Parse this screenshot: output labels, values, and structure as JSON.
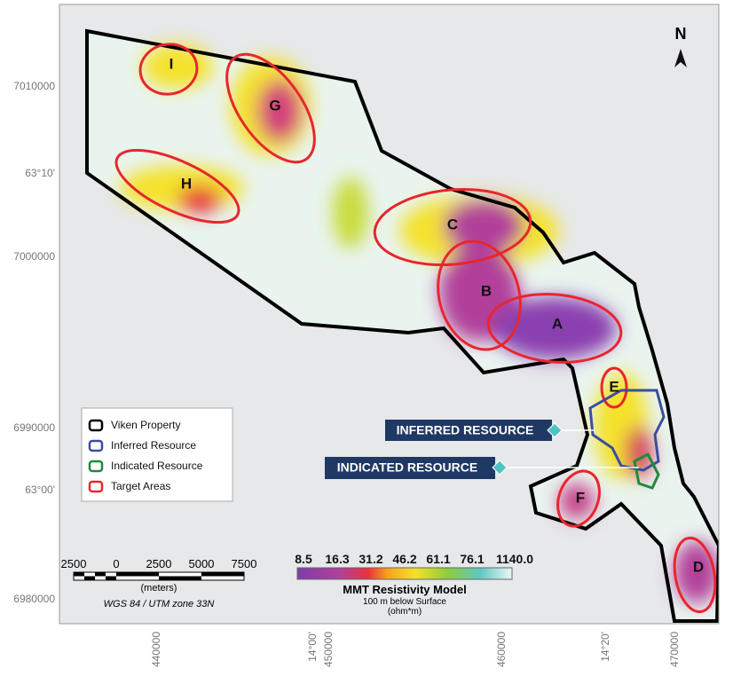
{
  "map": {
    "north": "N",
    "left_labels": [
      "7010000",
      "63°10'",
      "7000000",
      "6990000",
      "63°00'",
      "6980000"
    ],
    "bottom_labels": [
      "440000",
      "14°00'",
      "450000",
      "460000",
      "14°20'",
      "470000"
    ],
    "targets": [
      "I",
      "G",
      "H",
      "C",
      "B",
      "A",
      "E",
      "F",
      "D"
    ]
  },
  "callouts": {
    "inferred": "INFERRED RESOURCE",
    "indicated": "INDICATED RESOURCE"
  },
  "legend": {
    "items": [
      "Viken Property",
      "Inferred Resource",
      "Indicated Resource",
      "Target Areas"
    ]
  },
  "scale_bar": {
    "ticks": [
      "2500",
      "0",
      "2500",
      "5000",
      "7500"
    ],
    "unit": "(meters)",
    "projection": "WGS 84 / UTM zone 33N"
  },
  "color_bar": {
    "ticks": [
      "8.5",
      "16.3",
      "31.2",
      "46.2",
      "61.1",
      "76.1",
      "1140.0"
    ],
    "title": "MMT Resistivity Model",
    "subtitle": "100 m below Surface",
    "unit": "(ohm*m)"
  }
}
